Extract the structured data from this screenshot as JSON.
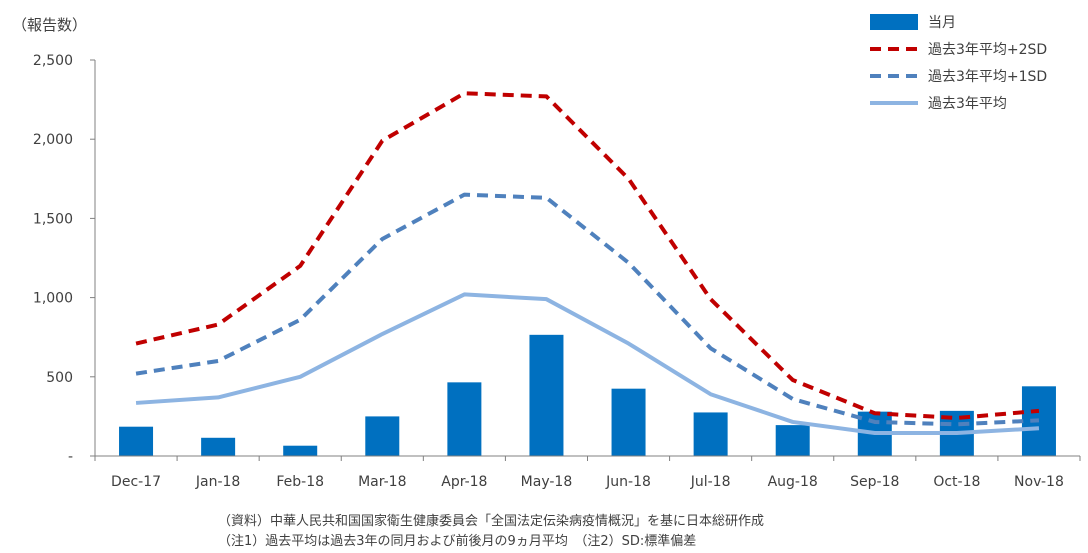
{
  "chart_data": {
    "type": "bar",
    "y_unit_label": "（報告数）",
    "categories": [
      "Dec-17",
      "Jan-18",
      "Feb-18",
      "Mar-18",
      "Apr-18",
      "May-18",
      "Jun-18",
      "Jul-18",
      "Aug-18",
      "Sep-18",
      "Oct-18",
      "Nov-18"
    ],
    "ylim": [
      0,
      2500
    ],
    "yticks": [
      0,
      500,
      1000,
      1500,
      2000,
      2500
    ],
    "ytick_labels": [
      "-",
      "500",
      "1,000",
      "1,500",
      "2,000",
      "2,500"
    ],
    "grid": false,
    "legend_position": "top-right",
    "series": [
      {
        "name": "当月",
        "kind": "bar",
        "color": "#0070C0",
        "values": [
          185,
          115,
          65,
          250,
          465,
          765,
          425,
          275,
          195,
          280,
          285,
          440
        ]
      },
      {
        "name": "過去3年平均+2SD",
        "kind": "line",
        "style": "dashed",
        "color": "#C00000",
        "values": [
          710,
          830,
          1200,
          1990,
          2290,
          2270,
          1750,
          990,
          480,
          270,
          240,
          285
        ]
      },
      {
        "name": "過去3年平均+1SD",
        "kind": "line",
        "style": "dashed",
        "color": "#4F81BD",
        "values": [
          520,
          600,
          860,
          1370,
          1650,
          1630,
          1220,
          680,
          360,
          215,
          200,
          225
        ]
      },
      {
        "name": "過去3年平均",
        "kind": "line",
        "style": "solid",
        "color": "#8DB4E2",
        "values": [
          335,
          370,
          500,
          770,
          1020,
          990,
          710,
          390,
          215,
          145,
          145,
          175
        ]
      }
    ]
  },
  "notes": {
    "source": "（資料）中華人民共和国国家衛生健康委員会「全国法定伝染病疫情概況」を基に日本総研作成",
    "note": "（注1）過去平均は過去3年の同月および前後月の9ヵ月平均　（注2）SD:標準偏差"
  }
}
